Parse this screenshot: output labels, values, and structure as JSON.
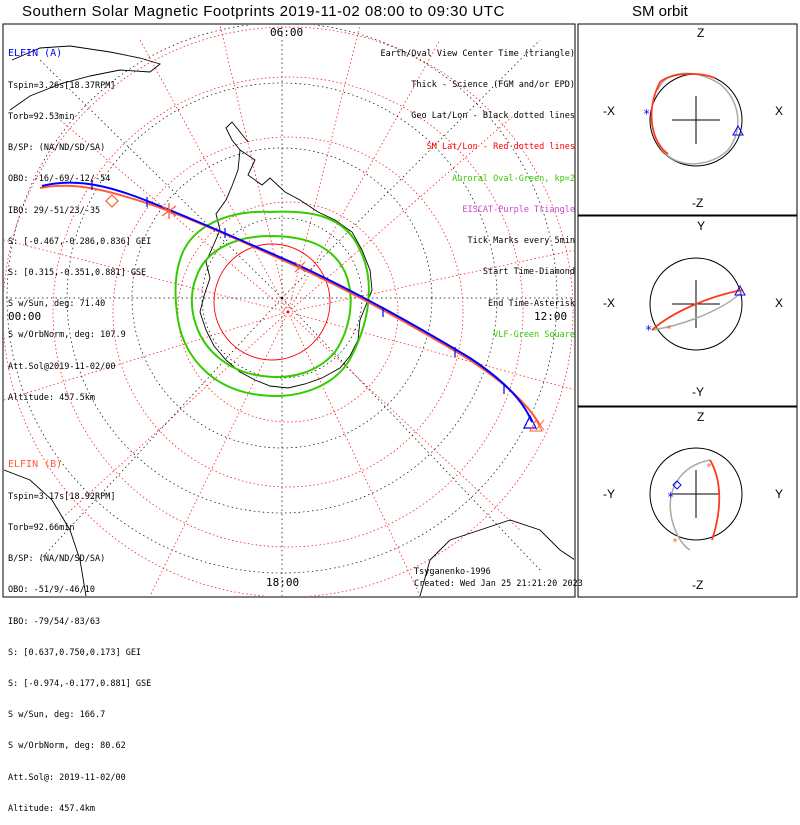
{
  "title": "Southern Solar Magnetic Footprints 2019-11-02 08:00 to 09:30 UTC",
  "orbit_title": "SM orbit",
  "hour_labels": {
    "top": "06:00",
    "left": "00:00",
    "right": "12:00",
    "bottom": "18:00"
  },
  "elfin_a": {
    "name": "ELFIN (A)",
    "color": "#0000ff",
    "lines": [
      "Tspin=3.26s[18.37RPM]",
      "Torb=92.53min",
      "B/SP: (NA/ND/SD/SA)",
      "OBO: -16/-69/-12/-54",
      "IBO: 29/-51/23/-35",
      "S: [-0.467,-0.286,0.836] GEI",
      "S: [0.315,-0.351,0.881] GSE",
      "S w/Sun, deg: 71.40",
      "S w/OrbNorm, deg: 107.9",
      "Att.Sol@2019-11-02/00",
      "Altitude: 457.5km"
    ]
  },
  "elfin_b": {
    "name": "ELFIN (B)",
    "color": "#ff5a36",
    "lines": [
      "Tspin=3.17s[18.92RPM]",
      "Torb=92.66min",
      "B/SP: (NA/ND/SD/SA)",
      "OBO: -51/9/-46/10",
      "IBO: -79/54/-83/63",
      "S: [0.637,0.750,0.173] GEI",
      "S: [-0.974,-0.177,0.881] GSE",
      "S w/Sun, deg: 166.7",
      "S w/OrbNorm, deg: 80.62",
      "Att.Sol@: 2019-11-02/00",
      "Altitude: 457.4km"
    ]
  },
  "legend": [
    {
      "text": "Earth/Oval View Center Time (triangle)",
      "color": "#000000"
    },
    {
      "text": "Thick - Science (FGM and/or EPD)",
      "color": "#000000"
    },
    {
      "text": "Geo Lat/Lon - Black dotted lines",
      "color": "#000000"
    },
    {
      "text": "SM Lat/Lon - Red dotted lines",
      "color": "#ff0000"
    },
    {
      "text": "Auroral Oval-Green, kp=2",
      "color": "#33cc00"
    },
    {
      "text": "EISCAT-Purple Triangle",
      "color": "#cc44cc"
    },
    {
      "text": "Tick Marks every 5min",
      "color": "#000000"
    },
    {
      "text": "Start Time-Diamond",
      "color": "#000000"
    },
    {
      "text": "End Time-Asterisk",
      "color": "#000000"
    },
    {
      "text": "VLF-Green Square",
      "color": "#33cc00"
    }
  ],
  "footer": {
    "model": "Tsyganenko-1996",
    "created": "Created: Wed Jan 25 21:21:20 2023"
  },
  "orbit_panels": [
    {
      "top": "Z",
      "bottom": "-Z",
      "left": "-X",
      "right": "X"
    },
    {
      "top": "Y",
      "bottom": "-Y",
      "left": "-X",
      "right": "X"
    },
    {
      "top": "Z",
      "bottom": "-Z",
      "left": "-Y",
      "right": "Y"
    }
  ],
  "colors": {
    "elfin_a": "#0000ff",
    "elfin_b": "#ff5a36",
    "oval": "#33cc00",
    "sm_grid": "#ff0000",
    "geo_grid": "#000000"
  }
}
